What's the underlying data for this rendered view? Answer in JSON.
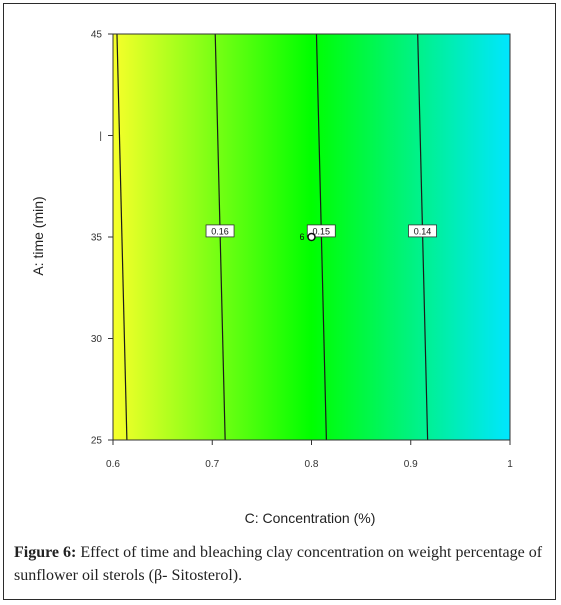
{
  "chart_data": {
    "type": "contour",
    "xlabel": "C: Concentration (%)",
    "ylabel": "A: time (min)",
    "xlim": [
      0.6,
      1.0
    ],
    "ylim": [
      25,
      45
    ],
    "x_ticks": [
      "0.6",
      "0.7",
      "0.8",
      "0.9",
      "1"
    ],
    "y_ticks": [
      {
        "value": 25,
        "label": "25"
      },
      {
        "value": 30,
        "label": "30"
      },
      {
        "value": 35,
        "label": "35"
      },
      {
        "value": 40,
        "label": "|"
      },
      {
        "value": 45,
        "label": "45"
      }
    ],
    "color_scale": {
      "low": "#00e6ff",
      "mid": "#00ff00",
      "high": "#f7ff2a"
    },
    "contours": [
      {
        "label": "0.16",
        "x_at_ymin": 0.713,
        "x_at_ymax": 0.703,
        "label_y": 35.3
      },
      {
        "label": "0.15",
        "x_at_ymin": 0.815,
        "x_at_ymax": 0.805,
        "label_y": 35.3
      },
      {
        "label": "0.14",
        "x_at_ymin": 0.917,
        "x_at_ymax": 0.907,
        "label_y": 35.3
      }
    ],
    "edge_lines": [
      {
        "x_at_ymin": 0.614,
        "x_at_ymax": 0.604
      }
    ],
    "design_point": {
      "x": 0.8,
      "y": 35,
      "label": "6"
    }
  },
  "caption": {
    "label": "Figure 6:",
    "text": " Effect of time and bleaching clay concentration on weight percentage of sunflower oil sterols (β- Sitosterol)."
  }
}
